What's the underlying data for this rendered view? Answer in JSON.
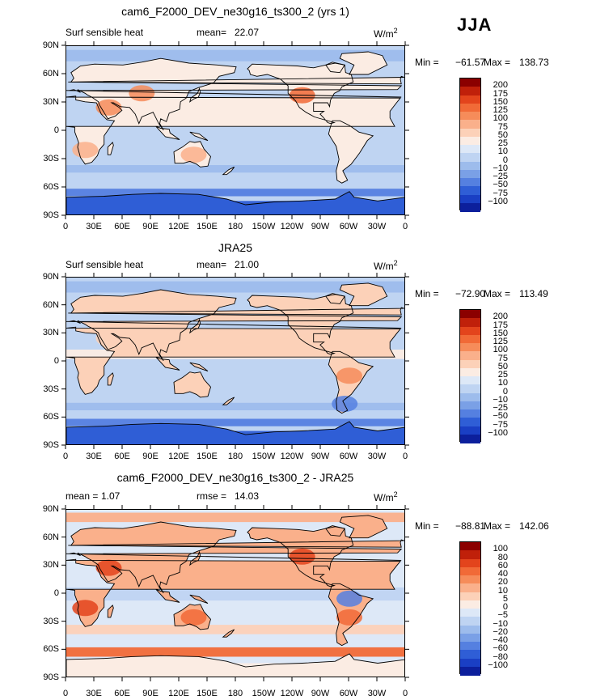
{
  "season": "JJA",
  "chart_data": [
    {
      "type": "heatmap",
      "title": "cam6_F2000_DEV_ne30g16_ts300_2 (yrs 1)",
      "left_label": "Surf sensible heat",
      "stat_label": "mean=",
      "stat_value": "22.07",
      "units": "W/m",
      "units_sup": "2",
      "min_label": "Min = ",
      "min_value": "−61.57",
      "max_label": "Max = ",
      "max_value": "138.73",
      "lat_ticks": [
        "90N",
        "60N",
        "30N",
        "0",
        "30S",
        "60S",
        "90S"
      ],
      "lon_ticks": [
        "0",
        "30E",
        "60E",
        "90E",
        "120E",
        "150E",
        "180",
        "150W",
        "120W",
        "90W",
        "60W",
        "30W",
        "0"
      ],
      "levels": [
        "200",
        "175",
        "150",
        "125",
        "100",
        "75",
        "50",
        "25",
        "10",
        "0",
        "−10",
        "−25",
        "−50",
        "−75",
        "−100"
      ],
      "colors": [
        "#8b0000",
        "#c0200a",
        "#e3441c",
        "#f16a37",
        "#f68c5a",
        "#fab08b",
        "#fcd1b8",
        "#fbece3",
        "#dde8f7",
        "#bfd4f2",
        "#9dbcec",
        "#7aa0e6",
        "#5580e0",
        "#2f5ed6",
        "#1a3fc4",
        "#0c1f9c"
      ],
      "background": "#bfd4f2",
      "ocean_bands": [
        {
          "lat": 80,
          "h": 12,
          "color": "#9dbcec"
        },
        {
          "lat": -40,
          "h": 8,
          "color": "#9dbcec"
        },
        {
          "lat": -55,
          "h": 8,
          "color": "#bfd4f2"
        },
        {
          "lat": -65,
          "h": 8,
          "color": "#5580e0"
        },
        {
          "lat": -82,
          "h": 16,
          "color": "#2f5ed6"
        }
      ],
      "land_color": "#fbece3",
      "hot_spots": [
        {
          "lon": 45,
          "lat": 25,
          "color": "#f68c5a"
        },
        {
          "lon": 80,
          "lat": 40,
          "color": "#f68c5a"
        },
        {
          "lon": 250,
          "lat": 38,
          "color": "#f16a37"
        },
        {
          "lon": 20,
          "lat": -20,
          "color": "#fab08b"
        },
        {
          "lon": 135,
          "lat": -25,
          "color": "#fab08b"
        }
      ]
    },
    {
      "type": "heatmap",
      "title": "JRA25",
      "left_label": "Surf sensible heat",
      "stat_label": "mean=",
      "stat_value": "21.00",
      "units": "W/m",
      "units_sup": "2",
      "min_label": "Min = ",
      "min_value": "−72.90",
      "max_label": "Max = ",
      "max_value": "113.49",
      "lat_ticks": [
        "90N",
        "60N",
        "30N",
        "0",
        "30S",
        "60S",
        "90S"
      ],
      "lon_ticks": [
        "0",
        "30E",
        "60E",
        "90E",
        "120E",
        "150E",
        "180",
        "150W",
        "120W",
        "90W",
        "60W",
        "30W",
        "0"
      ],
      "levels": [
        "200",
        "175",
        "150",
        "125",
        "100",
        "75",
        "50",
        "25",
        "10",
        "0",
        "−10",
        "−25",
        "−50",
        "−75",
        "−100"
      ],
      "colors": [
        "#8b0000",
        "#c0200a",
        "#e3441c",
        "#f16a37",
        "#f68c5a",
        "#fab08b",
        "#fcd1b8",
        "#fbece3",
        "#dde8f7",
        "#bfd4f2",
        "#9dbcec",
        "#7aa0e6",
        "#5580e0",
        "#2f5ed6",
        "#1a3fc4",
        "#0c1f9c"
      ],
      "background": "#bfd4f2",
      "ocean_bands": [
        {
          "lat": 80,
          "h": 12,
          "color": "#9dbcec"
        },
        {
          "lat": 8,
          "h": 10,
          "color": "#fbece3"
        },
        {
          "lat": -48,
          "h": 8,
          "color": "#9dbcec"
        },
        {
          "lat": -65,
          "h": 8,
          "color": "#5580e0"
        },
        {
          "lat": -82,
          "h": 16,
          "color": "#2f5ed6"
        }
      ],
      "land_color": "#fcd1b8",
      "hot_spots": [
        {
          "lon": 45,
          "lat": 25,
          "color": "#fcd1b8"
        },
        {
          "lon": 250,
          "lat": 38,
          "color": "#fcd1b8"
        },
        {
          "lon": 295,
          "lat": -45,
          "color": "#5580e0"
        },
        {
          "lon": 300,
          "lat": -15,
          "color": "#f68c5a"
        }
      ]
    },
    {
      "type": "heatmap",
      "title": "cam6_F2000_DEV_ne30g16_ts300_2 - JRA25",
      "left_label": "mean =",
      "left_value": "1.07",
      "stat_label": "rmse =",
      "stat_value": "14.03",
      "units": "W/m",
      "units_sup": "2",
      "min_label": "Min = ",
      "min_value": "−88.81",
      "max_label": "Max = ",
      "max_value": "142.06",
      "lat_ticks": [
        "90N",
        "60N",
        "30N",
        "0",
        "30S",
        "60S",
        "90S"
      ],
      "lon_ticks": [
        "0",
        "30E",
        "60E",
        "90E",
        "120E",
        "150E",
        "180",
        "150W",
        "120W",
        "90W",
        "60W",
        "30W",
        "0"
      ],
      "levels": [
        "100",
        "80",
        "60",
        "40",
        "20",
        "10",
        "5",
        "0",
        "−5",
        "−10",
        "−20",
        "−40",
        "−60",
        "−80",
        "−100"
      ],
      "colors": [
        "#8b0000",
        "#c0200a",
        "#e3441c",
        "#f16a37",
        "#f68c5a",
        "#fab08b",
        "#fcd1b8",
        "#fbece3",
        "#dde8f7",
        "#bfd4f2",
        "#9dbcec",
        "#7aa0e6",
        "#5580e0",
        "#2f5ed6",
        "#1a3fc4",
        "#0c1f9c"
      ],
      "background": "#dde8f7",
      "ocean_bands": [
        {
          "lat": 82,
          "h": 10,
          "color": "#fab08b"
        },
        {
          "lat": 0,
          "h": 14,
          "color": "#bfd4f2"
        },
        {
          "lat": -38,
          "h": 10,
          "color": "#fcd1b8"
        },
        {
          "lat": -62,
          "h": 10,
          "color": "#f16a37"
        },
        {
          "lat": -82,
          "h": 16,
          "color": "#fbece3"
        }
      ],
      "land_color": "#fab08b",
      "hot_spots": [
        {
          "lon": 45,
          "lat": 28,
          "color": "#e3441c"
        },
        {
          "lon": 250,
          "lat": 40,
          "color": "#e3441c"
        },
        {
          "lon": 300,
          "lat": -5,
          "color": "#5580e0"
        },
        {
          "lon": 300,
          "lat": -25,
          "color": "#f16a37"
        },
        {
          "lon": 135,
          "lat": -25,
          "color": "#f16a37"
        },
        {
          "lon": 20,
          "lat": -15,
          "color": "#e3441c"
        }
      ]
    }
  ]
}
